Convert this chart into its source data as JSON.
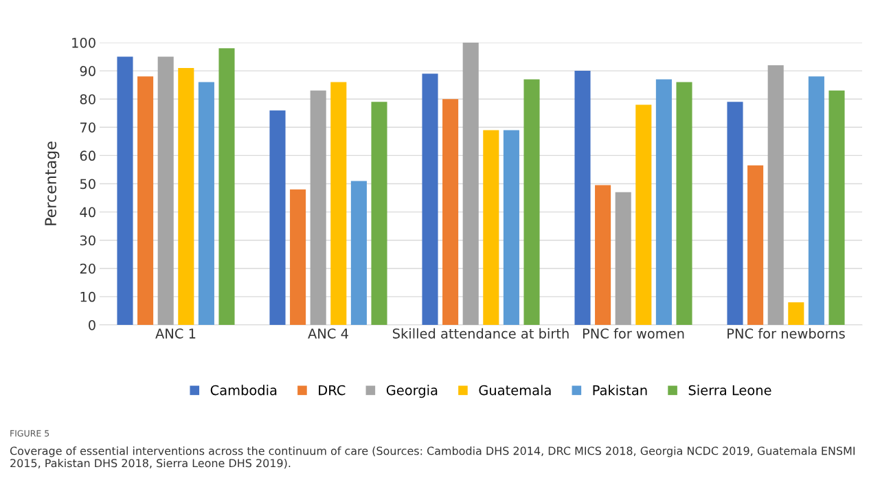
{
  "chart_data": {
    "type": "bar",
    "ylabel": "Percentage",
    "categories": [
      "ANC 1",
      "ANC 4",
      "Skilled attendance at birth",
      "PNC for women",
      "PNC for newborns"
    ],
    "series": [
      {
        "name": "Cambodia",
        "color": "#4472c4",
        "values": [
          95,
          76,
          89,
          90,
          79
        ]
      },
      {
        "name": "DRC",
        "color": "#ed7d31",
        "values": [
          88,
          48,
          80,
          49.5,
          56.5
        ]
      },
      {
        "name": "Georgia",
        "color": "#a5a5a5",
        "values": [
          95,
          83,
          100,
          47,
          92
        ]
      },
      {
        "name": "Guatemala",
        "color": "#ffc000",
        "values": [
          91,
          86,
          69,
          78,
          8
        ]
      },
      {
        "name": "Pakistan",
        "color": "#5b9bd5",
        "values": [
          86,
          51,
          69,
          87,
          88
        ]
      },
      {
        "name": "Sierra Leone",
        "color": "#70ad47",
        "values": [
          98,
          79,
          87,
          86,
          83
        ]
      }
    ],
    "ylim": [
      0,
      100
    ],
    "yticks": [
      0,
      10,
      20,
      30,
      40,
      50,
      60,
      70,
      80,
      90,
      100
    ],
    "grid": "y",
    "legend": "bottom",
    "annotations": [
      "FIGURE 5",
      "Coverage of essential interventions across the continuum of care (Sources: Cambodia DHS 2014, DRC MICS 2018, Georgia NCDC 2019, Guatemala ENSMI 2015, Pakistan DHS 2018, Sierra Leone DHS 2019)."
    ]
  }
}
